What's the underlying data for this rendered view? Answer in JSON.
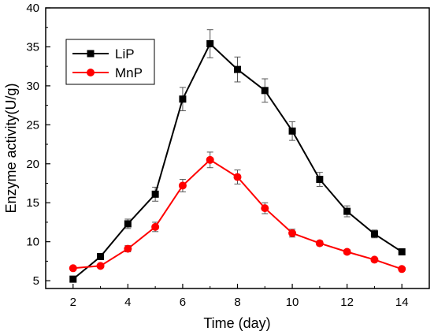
{
  "chart_data": {
    "type": "line",
    "xlabel": "Time (day)",
    "ylabel": "Enzyme activity(U/g)",
    "xlim": [
      1,
      15
    ],
    "ylim": [
      4,
      40
    ],
    "xticks": [
      2,
      4,
      6,
      8,
      10,
      12,
      14
    ],
    "yticks": [
      5,
      10,
      15,
      20,
      25,
      30,
      35,
      40
    ],
    "grid": false,
    "legend_position": "top-left",
    "series": [
      {
        "name": "LiP",
        "color": "#000000",
        "marker": "square",
        "x": [
          2,
          3,
          4,
          5,
          6,
          7,
          8,
          9,
          10,
          11,
          12,
          13,
          14
        ],
        "y": [
          5.2,
          8.1,
          12.3,
          16.1,
          28.3,
          35.4,
          32.1,
          29.4,
          24.2,
          18.0,
          13.9,
          11.0,
          8.7
        ],
        "error": [
          0.3,
          0.3,
          0.6,
          0.9,
          1.5,
          1.8,
          1.6,
          1.5,
          1.2,
          0.9,
          0.7,
          0.5,
          0.3
        ]
      },
      {
        "name": "MnP",
        "color": "#ff0000",
        "marker": "circle",
        "x": [
          2,
          3,
          4,
          5,
          6,
          7,
          8,
          9,
          10,
          11,
          12,
          13,
          14
        ],
        "y": [
          6.6,
          6.9,
          9.1,
          11.9,
          17.2,
          20.5,
          18.3,
          14.3,
          11.1,
          9.8,
          8.7,
          7.7,
          6.5
        ],
        "error": [
          0.2,
          0.2,
          0.4,
          0.6,
          0.8,
          1.0,
          0.9,
          0.7,
          0.5,
          0.3,
          0.3,
          0.2,
          0.2
        ]
      }
    ]
  }
}
